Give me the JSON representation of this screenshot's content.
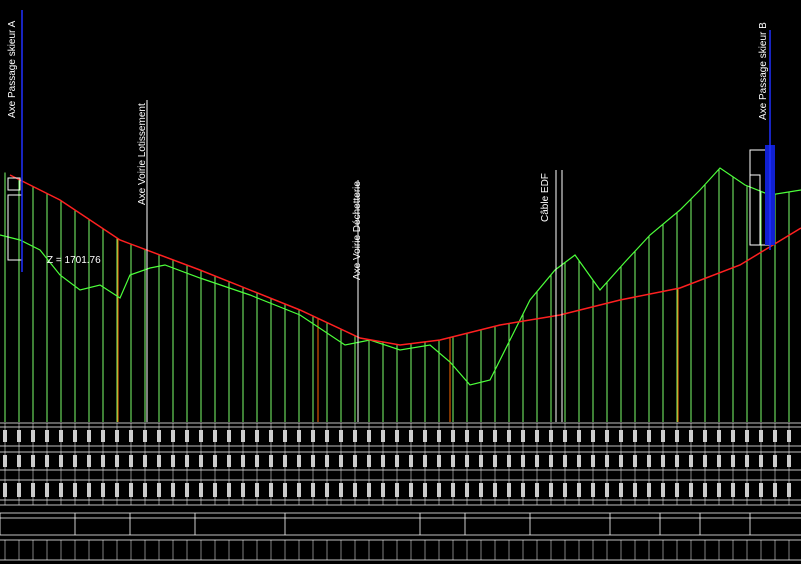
{
  "labels": {
    "axis_a": "Axe Passage skieur A",
    "road_lot": "Axe Voirie Lotissement",
    "road_dech": "Axe Voirie Déchetterie",
    "cable": "Câble EDF",
    "axis_b": "Axe Passage skieur B",
    "z_level": "Z = 1701.76"
  }
}
